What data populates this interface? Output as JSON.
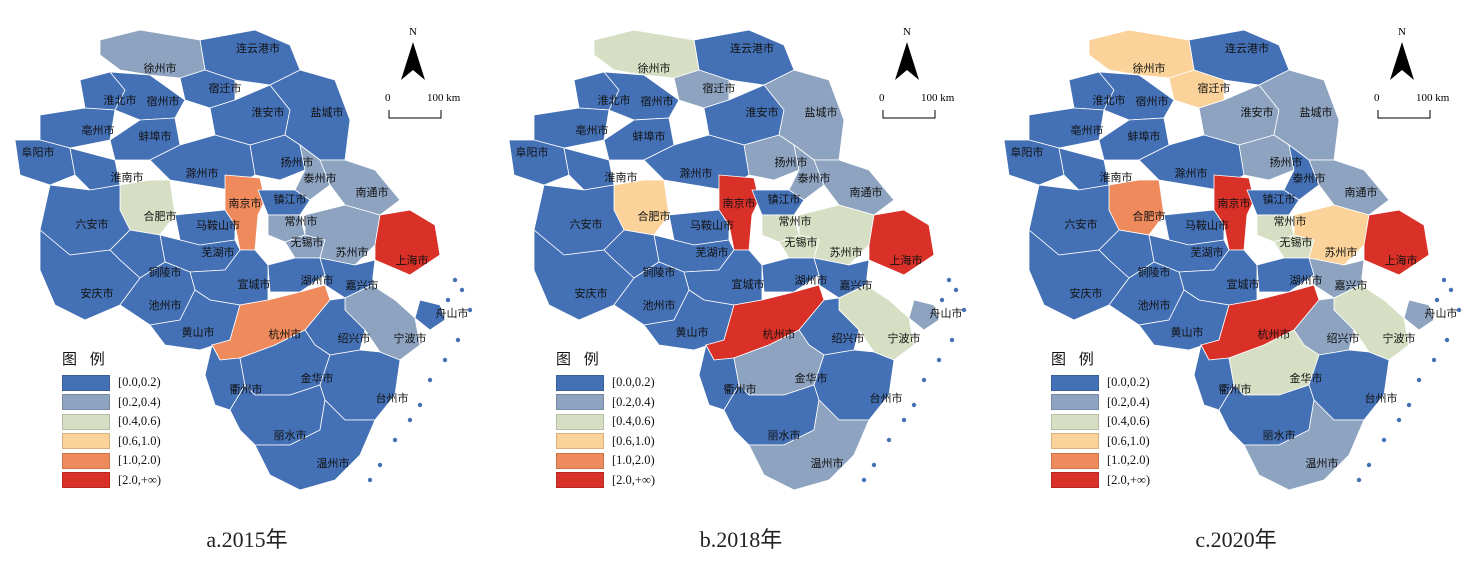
{
  "legend": {
    "title": "图 例",
    "classes": [
      {
        "label": "[0.0,0.2)",
        "color": "#4470b5"
      },
      {
        "label": "[0.2,0.4)",
        "color": "#8da3c0"
      },
      {
        "label": "[0.4,0.6)",
        "color": "#d6dfc4"
      },
      {
        "label": "[0.6,1.0)",
        "color": "#fbd29a"
      },
      {
        "label": "[1.0,2.0)",
        "color": "#ee8a5c"
      },
      {
        "label": "[2.0,+∞)",
        "color": "#d93028"
      }
    ]
  },
  "north_label": "N",
  "scale_bar": {
    "zero": "0",
    "distance": "100 km"
  },
  "panels": [
    {
      "caption": "a.2015年",
      "classes": {
        "连云港市": 0,
        "徐州市": 1,
        "宿迁市": 0,
        "淮北市": 0,
        "宿州市": 0,
        "淮安市": 0,
        "盐城市": 0,
        "亳州市": 0,
        "蚌埠市": 0,
        "阜阳市": 0,
        "扬州市": 0,
        "淮南市": 0,
        "滁州市": 0,
        "泰州市": 1,
        "南通市": 1,
        "合肥市": 2,
        "南京市": 4,
        "镇江市": 0,
        "六安市": 0,
        "马鞍山市": 0,
        "常州市": 1,
        "无锡市": 1,
        "苏州市": 1,
        "上海市": 5,
        "芜湖市": 0,
        "铜陵市": 0,
        "宣城市": 0,
        "湖州市": 0,
        "嘉兴市": 0,
        "安庆市": 0,
        "池州市": 0,
        "黄山市": 0,
        "杭州市": 4,
        "舟山市": 0,
        "宁波市": 1,
        "绍兴市": 0,
        "衢州市": 0,
        "金华市": 0,
        "台州市": 0,
        "丽水市": 0,
        "温州市": 0
      }
    },
    {
      "caption": "b.2018年",
      "classes": {
        "连云港市": 0,
        "徐州市": 2,
        "宿迁市": 1,
        "淮北市": 0,
        "宿州市": 0,
        "淮安市": 0,
        "盐城市": 1,
        "亳州市": 0,
        "蚌埠市": 0,
        "阜阳市": 0,
        "扬州市": 1,
        "淮南市": 0,
        "滁州市": 0,
        "泰州市": 1,
        "南通市": 1,
        "合肥市": 3,
        "南京市": 5,
        "镇江市": 0,
        "六安市": 0,
        "马鞍山市": 0,
        "常州市": 2,
        "无锡市": 2,
        "苏州市": 2,
        "上海市": 5,
        "芜湖市": 0,
        "铜陵市": 0,
        "宣城市": 0,
        "湖州市": 0,
        "嘉兴市": 0,
        "安庆市": 0,
        "池州市": 0,
        "黄山市": 0,
        "杭州市": 5,
        "舟山市": 1,
        "宁波市": 2,
        "绍兴市": 0,
        "衢州市": 0,
        "金华市": 1,
        "台州市": 0,
        "丽水市": 0,
        "温州市": 1
      }
    },
    {
      "caption": "c.2020年",
      "classes": {
        "连云港市": 0,
        "徐州市": 3,
        "宿迁市": 3,
        "淮北市": 0,
        "宿州市": 0,
        "淮安市": 1,
        "盐城市": 1,
        "亳州市": 0,
        "蚌埠市": 0,
        "阜阳市": 0,
        "扬州市": 1,
        "淮南市": 0,
        "滁州市": 0,
        "泰州市": 0,
        "南通市": 1,
        "合肥市": 4,
        "南京市": 5,
        "镇江市": 0,
        "六安市": 0,
        "马鞍山市": 0,
        "常州市": 2,
        "无锡市": 2,
        "苏州市": 3,
        "上海市": 5,
        "芜湖市": 0,
        "铜陵市": 0,
        "宣城市": 0,
        "湖州市": 0,
        "嘉兴市": 1,
        "安庆市": 0,
        "池州市": 0,
        "黄山市": 0,
        "杭州市": 5,
        "舟山市": 1,
        "宁波市": 2,
        "绍兴市": 1,
        "衢州市": 0,
        "金华市": 2,
        "台州市": 0,
        "丽水市": 0,
        "温州市": 1
      }
    }
  ]
}
